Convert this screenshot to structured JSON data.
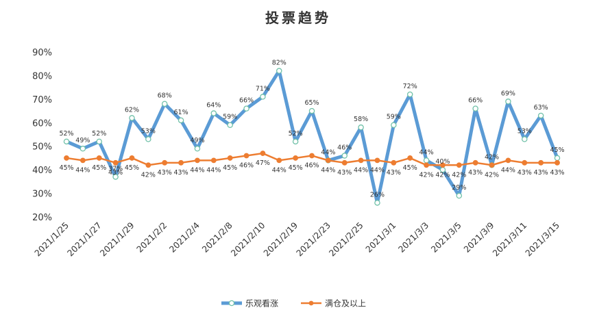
{
  "chart_data": {
    "type": "line",
    "title": "投票趋势",
    "xlabel": "",
    "ylabel": "",
    "ylim": [
      20,
      90
    ],
    "yticks": [
      "20%",
      "30%",
      "40%",
      "50%",
      "60%",
      "70%",
      "80%",
      "90%"
    ],
    "grid": false,
    "legend_position": "bottom",
    "x": [
      "2021/1/25",
      "2021/1/26",
      "2021/1/27",
      "2021/1/28",
      "2021/1/29",
      "2021/2/1",
      "2021/2/2",
      "2021/2/3",
      "2021/2/4",
      "2021/2/5",
      "2021/2/8",
      "2021/2/9",
      "2021/2/10",
      "2021/2/18",
      "2021/2/19",
      "2021/2/22",
      "2021/2/23",
      "2021/2/24",
      "2021/2/25",
      "2021/2/26",
      "2021/3/1",
      "2021/3/2",
      "2021/3/3",
      "2021/3/4",
      "2021/3/5",
      "2021/3/8",
      "2021/3/9",
      "2021/3/10",
      "2021/3/11",
      "2021/3/12",
      "2021/3/15"
    ],
    "x_tick_labels": [
      "2021/1/25",
      "2021/1/27",
      "2021/1/29",
      "2021/2/2",
      "2021/2/4",
      "2021/2/8",
      "2021/2/10",
      "2021/2/19",
      "2021/2/23",
      "2021/2/25",
      "2021/3/1",
      "2021/3/3",
      "2021/3/5",
      "2021/3/9",
      "2021/3/11",
      "2021/3/15"
    ],
    "series": [
      {
        "name": "乐观看涨",
        "color": "#5b9bd5",
        "marker": "circle-hollow",
        "values": [
          52,
          49,
          52,
          37,
          62,
          53,
          68,
          61,
          49,
          64,
          59,
          66,
          71,
          82,
          52,
          65,
          44,
          46,
          58,
          26,
          59,
          72,
          44,
          40,
          29,
          66,
          42,
          69,
          53,
          63,
          45
        ]
      },
      {
        "name": "满仓及以上",
        "color": "#ed7d31",
        "marker": "circle-filled",
        "values": [
          45,
          44,
          45,
          43,
          45,
          42,
          43,
          43,
          44,
          44,
          45,
          46,
          47,
          44,
          45,
          46,
          44,
          43,
          44,
          44,
          43,
          45,
          42,
          42,
          42,
          43,
          42,
          44,
          43,
          43,
          43
        ]
      }
    ]
  }
}
